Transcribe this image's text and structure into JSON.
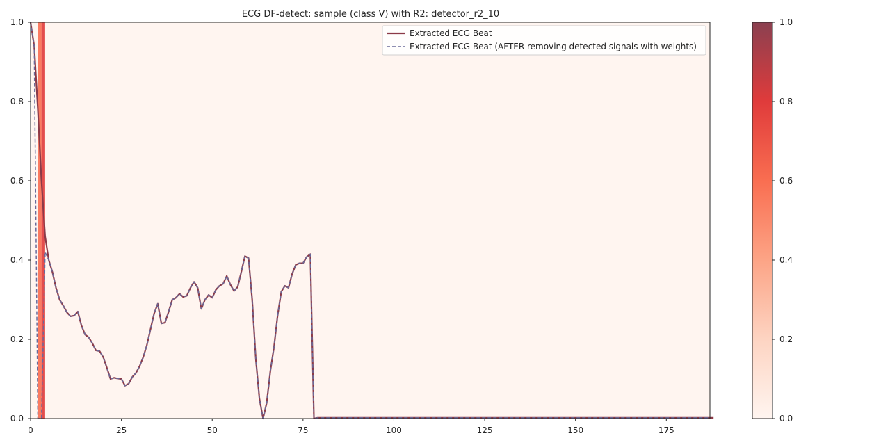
{
  "chart_data": {
    "type": "line",
    "title": "ECG DF-detect: sample (class V) with R2: detector_r2_10",
    "xlabel": "",
    "ylabel": "",
    "xlim": [
      0,
      187
    ],
    "ylim": [
      0,
      1.0
    ],
    "x_ticks": [
      "0",
      "25",
      "50",
      "75",
      "100",
      "125",
      "150",
      "175"
    ],
    "y_ticks": [
      "0.0",
      "0.2",
      "0.4",
      "0.6",
      "0.8",
      "1.0"
    ],
    "grid": false,
    "legend_position": "top-right",
    "series": [
      {
        "name": "Extracted ECG Beat",
        "style": "solid",
        "color": "#8b3a48",
        "values": [
          1.0,
          0.94,
          0.78,
          0.6,
          0.46,
          0.4,
          0.37,
          0.33,
          0.3,
          0.285,
          0.268,
          0.258,
          0.26,
          0.27,
          0.235,
          0.212,
          0.205,
          0.19,
          0.172,
          0.17,
          0.155,
          0.128,
          0.1,
          0.103,
          0.101,
          0.1,
          0.083,
          0.088,
          0.105,
          0.115,
          0.132,
          0.155,
          0.185,
          0.225,
          0.265,
          0.29,
          0.24,
          0.242,
          0.27,
          0.3,
          0.305,
          0.315,
          0.307,
          0.31,
          0.33,
          0.345,
          0.33,
          0.277,
          0.3,
          0.312,
          0.305,
          0.325,
          0.335,
          0.34,
          0.36,
          0.338,
          0.322,
          0.332,
          0.37,
          0.41,
          0.405,
          0.3,
          0.15,
          0.05,
          0.0,
          0.04,
          0.12,
          0.18,
          0.26,
          0.32,
          0.335,
          0.33,
          0.365,
          0.388,
          0.392,
          0.392,
          0.408,
          0.415,
          0.0,
          0.002,
          0.002,
          0.002,
          0.002,
          0.002,
          0.002,
          0.002,
          0.002,
          0.002,
          0.002,
          0.002,
          0.002,
          0.002,
          0.002,
          0.002,
          0.002,
          0.002,
          0.002,
          0.002,
          0.002,
          0.002,
          0.002,
          0.002,
          0.002,
          0.002,
          0.002,
          0.002,
          0.002,
          0.002,
          0.002,
          0.002,
          0.002,
          0.002,
          0.002,
          0.002,
          0.002,
          0.002,
          0.002,
          0.002,
          0.002,
          0.002,
          0.002,
          0.002,
          0.002,
          0.002,
          0.002,
          0.002,
          0.002,
          0.002,
          0.002,
          0.002,
          0.002,
          0.002,
          0.002,
          0.002,
          0.002,
          0.002,
          0.002,
          0.002,
          0.002,
          0.002,
          0.002,
          0.002,
          0.002,
          0.002,
          0.002,
          0.002,
          0.002,
          0.002,
          0.002,
          0.002,
          0.002,
          0.002,
          0.002,
          0.002,
          0.002,
          0.002,
          0.002,
          0.002,
          0.002,
          0.002,
          0.002,
          0.002,
          0.002,
          0.002,
          0.002,
          0.002,
          0.002,
          0.002,
          0.002,
          0.002,
          0.002,
          0.002,
          0.002,
          0.002,
          0.002,
          0.002,
          0.002,
          0.002,
          0.002,
          0.002,
          0.002,
          0.002,
          0.002,
          0.002,
          0.002,
          0.002,
          0.002,
          0.002,
          0.002
        ]
      },
      {
        "name": "Extracted ECG Beat (AFTER removing detected signals with weights)",
        "style": "dashed",
        "color": "#6a6a9a",
        "values": [
          1.0,
          0.94,
          0.0,
          0.0,
          0.42,
          0.4,
          0.37,
          0.33,
          0.3,
          0.285,
          0.268,
          0.258,
          0.26,
          0.27,
          0.235,
          0.212,
          0.205,
          0.19,
          0.172,
          0.17,
          0.155,
          0.128,
          0.1,
          0.103,
          0.101,
          0.1,
          0.083,
          0.088,
          0.105,
          0.115,
          0.132,
          0.155,
          0.185,
          0.225,
          0.265,
          0.29,
          0.24,
          0.242,
          0.27,
          0.3,
          0.305,
          0.315,
          0.307,
          0.31,
          0.33,
          0.345,
          0.33,
          0.277,
          0.3,
          0.312,
          0.305,
          0.325,
          0.335,
          0.34,
          0.36,
          0.338,
          0.322,
          0.332,
          0.37,
          0.41,
          0.405,
          0.3,
          0.15,
          0.05,
          0.0,
          0.04,
          0.12,
          0.18,
          0.26,
          0.32,
          0.335,
          0.33,
          0.365,
          0.388,
          0.392,
          0.392,
          0.408,
          0.415,
          0.0,
          0.002,
          0.002,
          0.002,
          0.002,
          0.002,
          0.002,
          0.002,
          0.002,
          0.002,
          0.002,
          0.002,
          0.002,
          0.002,
          0.002,
          0.002,
          0.002,
          0.002,
          0.002,
          0.002,
          0.002,
          0.002,
          0.002,
          0.002,
          0.002,
          0.002,
          0.002,
          0.002,
          0.002,
          0.002,
          0.002,
          0.002,
          0.002,
          0.002,
          0.002,
          0.002,
          0.002,
          0.002,
          0.002,
          0.002,
          0.002,
          0.002,
          0.002,
          0.002,
          0.002,
          0.002,
          0.002,
          0.002,
          0.002,
          0.002,
          0.002,
          0.002,
          0.002,
          0.002,
          0.002,
          0.002,
          0.002,
          0.002,
          0.002,
          0.002,
          0.002,
          0.002,
          0.002,
          0.002,
          0.002,
          0.002,
          0.002,
          0.002,
          0.002,
          0.002,
          0.002,
          0.002,
          0.002,
          0.002,
          0.002,
          0.002,
          0.002,
          0.002,
          0.002,
          0.002,
          0.002,
          0.002,
          0.002,
          0.002,
          0.002,
          0.002,
          0.002,
          0.002,
          0.002,
          0.002,
          0.002,
          0.002,
          0.002,
          0.002,
          0.002,
          0.002,
          0.002,
          0.002,
          0.002,
          0.002,
          0.002,
          0.002,
          0.002,
          0.002,
          0.002,
          0.002,
          0.002,
          0.002,
          0.002,
          0.002
        ]
      }
    ],
    "heatmap_weights": [
      {
        "x_start": 2,
        "x_end": 3,
        "weight": 0.55
      },
      {
        "x_start": 3,
        "x_end": 4,
        "weight": 0.85
      }
    ],
    "background_weight": 0.02,
    "colorbar": {
      "range": [
        0.0,
        1.0
      ],
      "ticks": [
        "0.0",
        "0.2",
        "0.4",
        "0.6",
        "0.8",
        "1.0"
      ],
      "colormap": "Reds",
      "colors": [
        "#fff5f0",
        "#fdd4c2",
        "#fca486",
        "#f96e51",
        "#e03b3b",
        "#8b3a48"
      ]
    }
  }
}
